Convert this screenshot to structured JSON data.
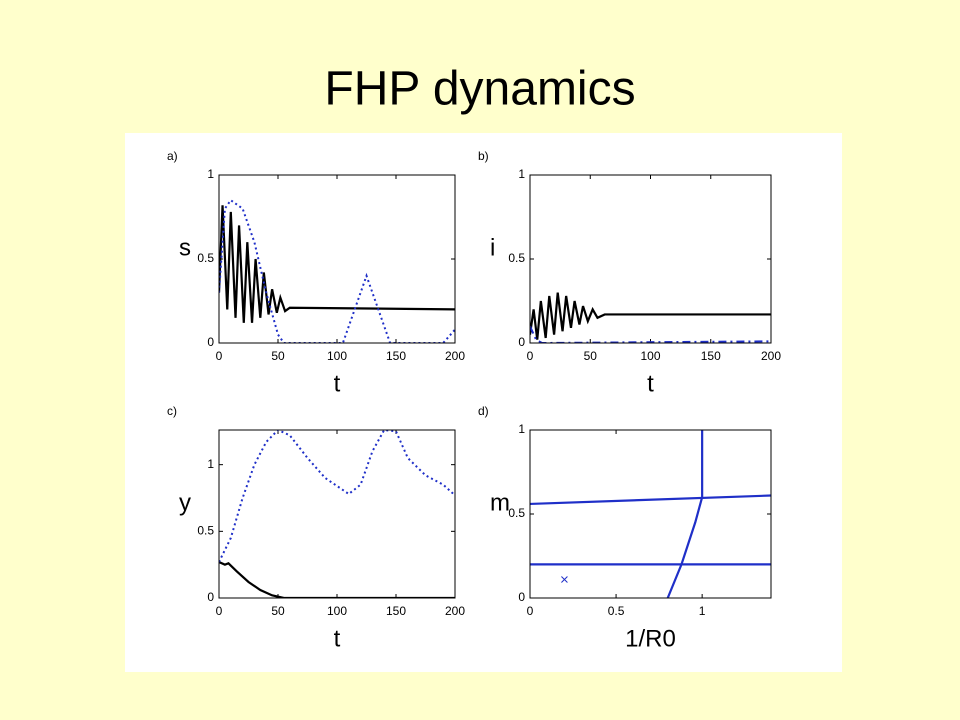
{
  "title": "FHP dynamics",
  "chart_data": [
    {
      "type": "line",
      "label": "a)",
      "xlabel": "t",
      "ylabel": "s",
      "xlim": [
        0,
        200
      ],
      "ylim": [
        0,
        1
      ],
      "xticks": [
        0,
        50,
        100,
        150,
        200
      ],
      "yticks": [
        0,
        0.5,
        1
      ],
      "series": [
        {
          "color": "#000000",
          "style": "solid",
          "x": [
            0,
            3,
            7,
            10,
            14,
            17,
            21,
            24,
            28,
            31,
            35,
            38,
            42,
            45,
            49,
            52,
            56,
            60,
            200
          ],
          "values": [
            0.3,
            0.82,
            0.2,
            0.78,
            0.15,
            0.7,
            0.12,
            0.6,
            0.12,
            0.5,
            0.15,
            0.42,
            0.17,
            0.32,
            0.18,
            0.27,
            0.19,
            0.21,
            0.2
          ]
        },
        {
          "color": "#1f2fc8",
          "style": "dotted",
          "x": [
            0,
            5,
            10,
            20,
            30,
            40,
            50,
            55,
            105,
            115,
            125,
            135,
            145,
            190,
            200
          ],
          "values": [
            0.3,
            0.8,
            0.85,
            0.8,
            0.6,
            0.3,
            0.05,
            0,
            0,
            0.2,
            0.4,
            0.2,
            0,
            0,
            0.08
          ]
        }
      ]
    },
    {
      "type": "line",
      "label": "b)",
      "xlabel": "t",
      "ylabel": "i",
      "xlim": [
        0,
        200
      ],
      "ylim": [
        0,
        1
      ],
      "xticks": [
        0,
        50,
        100,
        150,
        200
      ],
      "yticks": [
        0,
        0.5,
        1
      ],
      "series": [
        {
          "color": "#000000",
          "style": "solid",
          "x": [
            0,
            3,
            6,
            9,
            13,
            16,
            20,
            23,
            27,
            30,
            34,
            37,
            41,
            44,
            48,
            52,
            56,
            62,
            200
          ],
          "values": [
            0.05,
            0.2,
            0.02,
            0.25,
            0.03,
            0.28,
            0.05,
            0.3,
            0.07,
            0.28,
            0.09,
            0.25,
            0.11,
            0.22,
            0.13,
            0.2,
            0.15,
            0.17,
            0.17
          ]
        },
        {
          "color": "#1f2fc8",
          "style": "dashdot",
          "x": [
            0,
            5,
            10,
            200
          ],
          "values": [
            0.1,
            0.02,
            0,
            0.01
          ]
        }
      ]
    },
    {
      "type": "line",
      "label": "c)",
      "xlabel": "t",
      "ylabel": "y",
      "xlim": [
        0,
        200
      ],
      "ylim": [
        0,
        1.26
      ],
      "xticks": [
        0,
        50,
        100,
        150,
        200
      ],
      "yticks": [
        0,
        0.5,
        1
      ],
      "series": [
        {
          "color": "#000000",
          "style": "solid",
          "x": [
            0,
            5,
            8,
            15,
            25,
            35,
            45,
            55,
            200
          ],
          "values": [
            0.27,
            0.25,
            0.26,
            0.2,
            0.12,
            0.06,
            0.02,
            0,
            0
          ]
        },
        {
          "color": "#1f2fc8",
          "style": "dotted",
          "x": [
            0,
            10,
            20,
            30,
            40,
            50,
            60,
            75,
            90,
            110,
            120,
            130,
            140,
            150,
            160,
            175,
            190,
            200
          ],
          "values": [
            0.27,
            0.45,
            0.75,
            1.0,
            1.17,
            1.26,
            1.22,
            1.05,
            0.9,
            0.78,
            0.85,
            1.1,
            1.26,
            1.25,
            1.05,
            0.92,
            0.85,
            0.77
          ]
        }
      ]
    },
    {
      "type": "line",
      "label": "d)",
      "xlabel": "1/R0",
      "ylabel": "m",
      "xlim": [
        0,
        1.4
      ],
      "ylim": [
        0,
        1
      ],
      "xticks": [
        0,
        0.5,
        1
      ],
      "yticks": [
        0,
        0.5,
        1
      ],
      "series": [
        {
          "color": "#1f2fc8",
          "style": "solid",
          "x": [
            0,
            1.4
          ],
          "values": [
            0.56,
            0.61
          ]
        },
        {
          "color": "#1f2fc8",
          "style": "solid",
          "x": [
            0,
            1.4
          ],
          "values": [
            0.2,
            0.2
          ]
        },
        {
          "color": "#1f2fc8",
          "style": "solid",
          "x": [
            1,
            1
          ],
          "values": [
            0.6,
            1
          ]
        },
        {
          "color": "#1f2fc8",
          "style": "solid",
          "x": [
            0.8,
            0.88,
            0.96,
            1
          ],
          "values": [
            0,
            0.2,
            0.45,
            0.6
          ]
        },
        {
          "color": "#1f2fc8",
          "style": "marker",
          "x": [
            0.2
          ],
          "values": [
            0.11
          ]
        }
      ]
    }
  ]
}
